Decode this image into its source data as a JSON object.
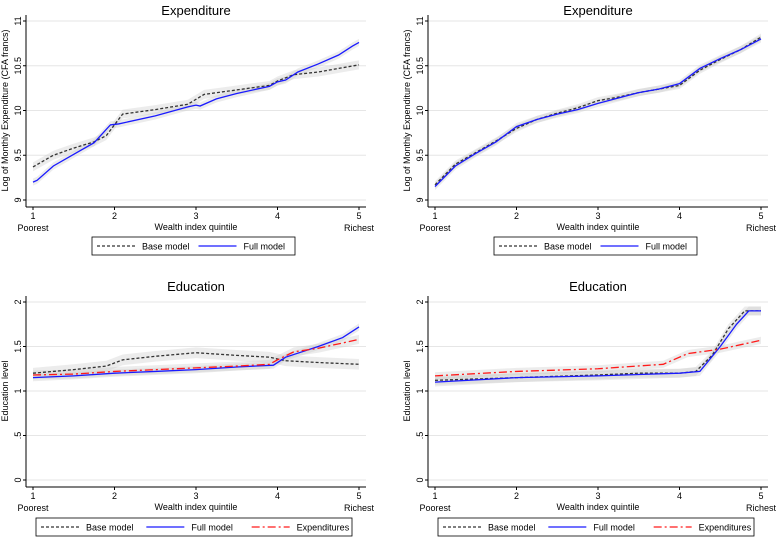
{
  "chart_data": [
    {
      "type": "line",
      "title": "Expenditure",
      "xlabel": "Wealth index quintile",
      "ylabel": "Log of Monthly Expenditure (CFA francs)",
      "x_ticks": [
        "1",
        "2",
        "3",
        "4",
        "5"
      ],
      "x_end_labels": [
        "Poorest",
        "Richest"
      ],
      "xlim": [
        1,
        5
      ],
      "ylim": [
        9,
        11
      ],
      "y_ticks": [
        {
          "v": 9,
          "label": "9"
        },
        {
          "v": 9.5,
          "label": "9.5"
        },
        {
          "v": 10,
          "label": "10"
        },
        {
          "v": 10.5,
          "label": "10.5"
        },
        {
          "v": 11,
          "label": "11"
        }
      ],
      "grid": true,
      "legend": "bottom",
      "series": [
        {
          "name": "Base model",
          "color": "#333333",
          "dash": "3,2",
          "ci": 0.05,
          "x": [
            1,
            1.25,
            1.5,
            1.75,
            1.9,
            2,
            2.1,
            2.5,
            2.9,
            3.1,
            3.5,
            3.9,
            4,
            4.2,
            4.5,
            5
          ],
          "y": [
            9.37,
            9.5,
            9.58,
            9.65,
            9.72,
            9.84,
            9.96,
            10.01,
            10.07,
            10.18,
            10.23,
            10.28,
            10.33,
            10.4,
            10.43,
            10.51
          ]
        },
        {
          "name": "Full model",
          "color": "#1a1aff",
          "dash": "",
          "ci": 0.04,
          "x": [
            1,
            1.05,
            1.25,
            1.5,
            1.75,
            1.95,
            2.05,
            2.5,
            2.9,
            3,
            3.05,
            3.25,
            3.5,
            3.9,
            4,
            4.1,
            4.25,
            4.5,
            4.75,
            4.92,
            5
          ],
          "y": [
            9.2,
            9.22,
            9.38,
            9.51,
            9.64,
            9.84,
            9.85,
            9.94,
            10.04,
            10.06,
            10.05,
            10.13,
            10.19,
            10.27,
            10.32,
            10.34,
            10.43,
            10.52,
            10.62,
            10.72,
            10.76
          ]
        }
      ]
    },
    {
      "type": "line",
      "title": "Expenditure",
      "xlabel": "Wealth index quintile",
      "ylabel": "Log of Monthly Expenditure (CFA francs)",
      "x_ticks": [
        "1",
        "2",
        "3",
        "4",
        "5"
      ],
      "x_end_labels": [
        "Poorest",
        "Richest"
      ],
      "xlim": [
        1,
        5
      ],
      "ylim": [
        9,
        11
      ],
      "y_ticks": [
        {
          "v": 9,
          "label": "9"
        },
        {
          "v": 9.5,
          "label": "9.5"
        },
        {
          "v": 10,
          "label": "10"
        },
        {
          "v": 10.5,
          "label": "10.5"
        },
        {
          "v": 11,
          "label": "11"
        }
      ],
      "grid": true,
      "legend": "bottom",
      "series": [
        {
          "name": "Base model",
          "color": "#333333",
          "dash": "3,2",
          "ci": 0.04,
          "x": [
            1,
            1.25,
            1.5,
            1.75,
            2,
            2.25,
            2.5,
            2.75,
            3,
            3.25,
            3.5,
            3.75,
            4,
            4.25,
            4.5,
            4.75,
            5
          ],
          "y": [
            9.17,
            9.4,
            9.53,
            9.66,
            9.8,
            9.9,
            9.97,
            10.03,
            10.11,
            10.15,
            10.2,
            10.24,
            10.28,
            10.45,
            10.57,
            10.68,
            10.82
          ]
        },
        {
          "name": "Full model",
          "color": "#1a1aff",
          "dash": "",
          "ci": 0.04,
          "x": [
            1,
            1.25,
            1.5,
            1.75,
            2,
            2.25,
            2.5,
            2.75,
            3,
            3.25,
            3.5,
            3.75,
            4,
            4.25,
            4.5,
            4.75,
            5
          ],
          "y": [
            9.15,
            9.38,
            9.52,
            9.65,
            9.82,
            9.9,
            9.96,
            10.01,
            10.08,
            10.14,
            10.2,
            10.24,
            10.3,
            10.47,
            10.58,
            10.68,
            10.8
          ]
        }
      ]
    },
    {
      "type": "line",
      "title": "Education",
      "xlabel": "Wealth index quintile",
      "ylabel": "Education level",
      "x_ticks": [
        "1",
        "2",
        "3",
        "4",
        "5"
      ],
      "x_end_labels": [
        "Poorest",
        "Richest"
      ],
      "xlim": [
        1,
        5
      ],
      "ylim": [
        0,
        2
      ],
      "y_ticks": [
        {
          "v": 0,
          "label": "0"
        },
        {
          "v": 0.5,
          "label": ".5"
        },
        {
          "v": 1,
          "label": "1"
        },
        {
          "v": 1.5,
          "label": "1.5"
        },
        {
          "v": 2,
          "label": "2"
        }
      ],
      "grid": true,
      "legend": "bottom",
      "series": [
        {
          "name": "Base model",
          "color": "#333333",
          "dash": "3,2",
          "ci": 0.06,
          "x": [
            1,
            1.5,
            1.9,
            2.1,
            2.5,
            3,
            3.5,
            3.9,
            4.1,
            4.5,
            5
          ],
          "y": [
            1.2,
            1.24,
            1.28,
            1.35,
            1.39,
            1.43,
            1.4,
            1.38,
            1.34,
            1.32,
            1.3
          ]
        },
        {
          "name": "Full model",
          "color": "#1a1aff",
          "dash": "",
          "ci": 0.04,
          "x": [
            1,
            1.5,
            2,
            2.5,
            3,
            3.5,
            3.95,
            4.1,
            4.5,
            4.8,
            5
          ],
          "y": [
            1.15,
            1.17,
            1.2,
            1.22,
            1.24,
            1.27,
            1.29,
            1.38,
            1.5,
            1.6,
            1.72
          ]
        },
        {
          "name": "Expenditures",
          "color": "#ff1a1a",
          "dash": "8,3,2,3",
          "ci": 0.05,
          "x": [
            1,
            1.5,
            2,
            2.5,
            3,
            3.5,
            3.9,
            4,
            4.2,
            4.5,
            5
          ],
          "y": [
            1.18,
            1.19,
            1.22,
            1.24,
            1.26,
            1.28,
            1.3,
            1.35,
            1.44,
            1.48,
            1.58
          ]
        }
      ]
    },
    {
      "type": "line",
      "title": "Education",
      "xlabel": "Wealth index quintile",
      "ylabel": "Education level",
      "x_ticks": [
        "1",
        "2",
        "3",
        "4",
        "5"
      ],
      "x_end_labels": [
        "Poorest",
        "Richest"
      ],
      "xlim": [
        1,
        5
      ],
      "ylim": [
        0,
        2
      ],
      "y_ticks": [
        {
          "v": 0,
          "label": "0"
        },
        {
          "v": 0.5,
          "label": ".5"
        },
        {
          "v": 1,
          "label": "1"
        },
        {
          "v": 1.5,
          "label": "1.5"
        },
        {
          "v": 2,
          "label": "2"
        }
      ],
      "grid": true,
      "legend": "bottom",
      "series": [
        {
          "name": "Base model",
          "color": "#333333",
          "dash": "3,2",
          "ci": 0.05,
          "x": [
            1,
            2,
            3,
            3.5,
            4,
            4.2,
            4.4,
            4.6,
            4.8,
            5
          ],
          "y": [
            1.12,
            1.15,
            1.18,
            1.2,
            1.2,
            1.22,
            1.4,
            1.7,
            1.9,
            1.9
          ]
        },
        {
          "name": "Full model",
          "color": "#1a1aff",
          "dash": "",
          "ci": 0.05,
          "x": [
            1,
            2,
            3,
            4,
            4.25,
            4.5,
            4.7,
            4.85,
            5
          ],
          "y": [
            1.1,
            1.15,
            1.17,
            1.2,
            1.22,
            1.5,
            1.75,
            1.9,
            1.9
          ]
        },
        {
          "name": "Expenditures",
          "color": "#ff1a1a",
          "dash": "8,3,2,3",
          "ci": 0.04,
          "x": [
            1,
            2,
            3,
            3.8,
            4.1,
            4.5,
            5
          ],
          "y": [
            1.17,
            1.22,
            1.25,
            1.3,
            1.42,
            1.47,
            1.57
          ]
        }
      ]
    }
  ]
}
